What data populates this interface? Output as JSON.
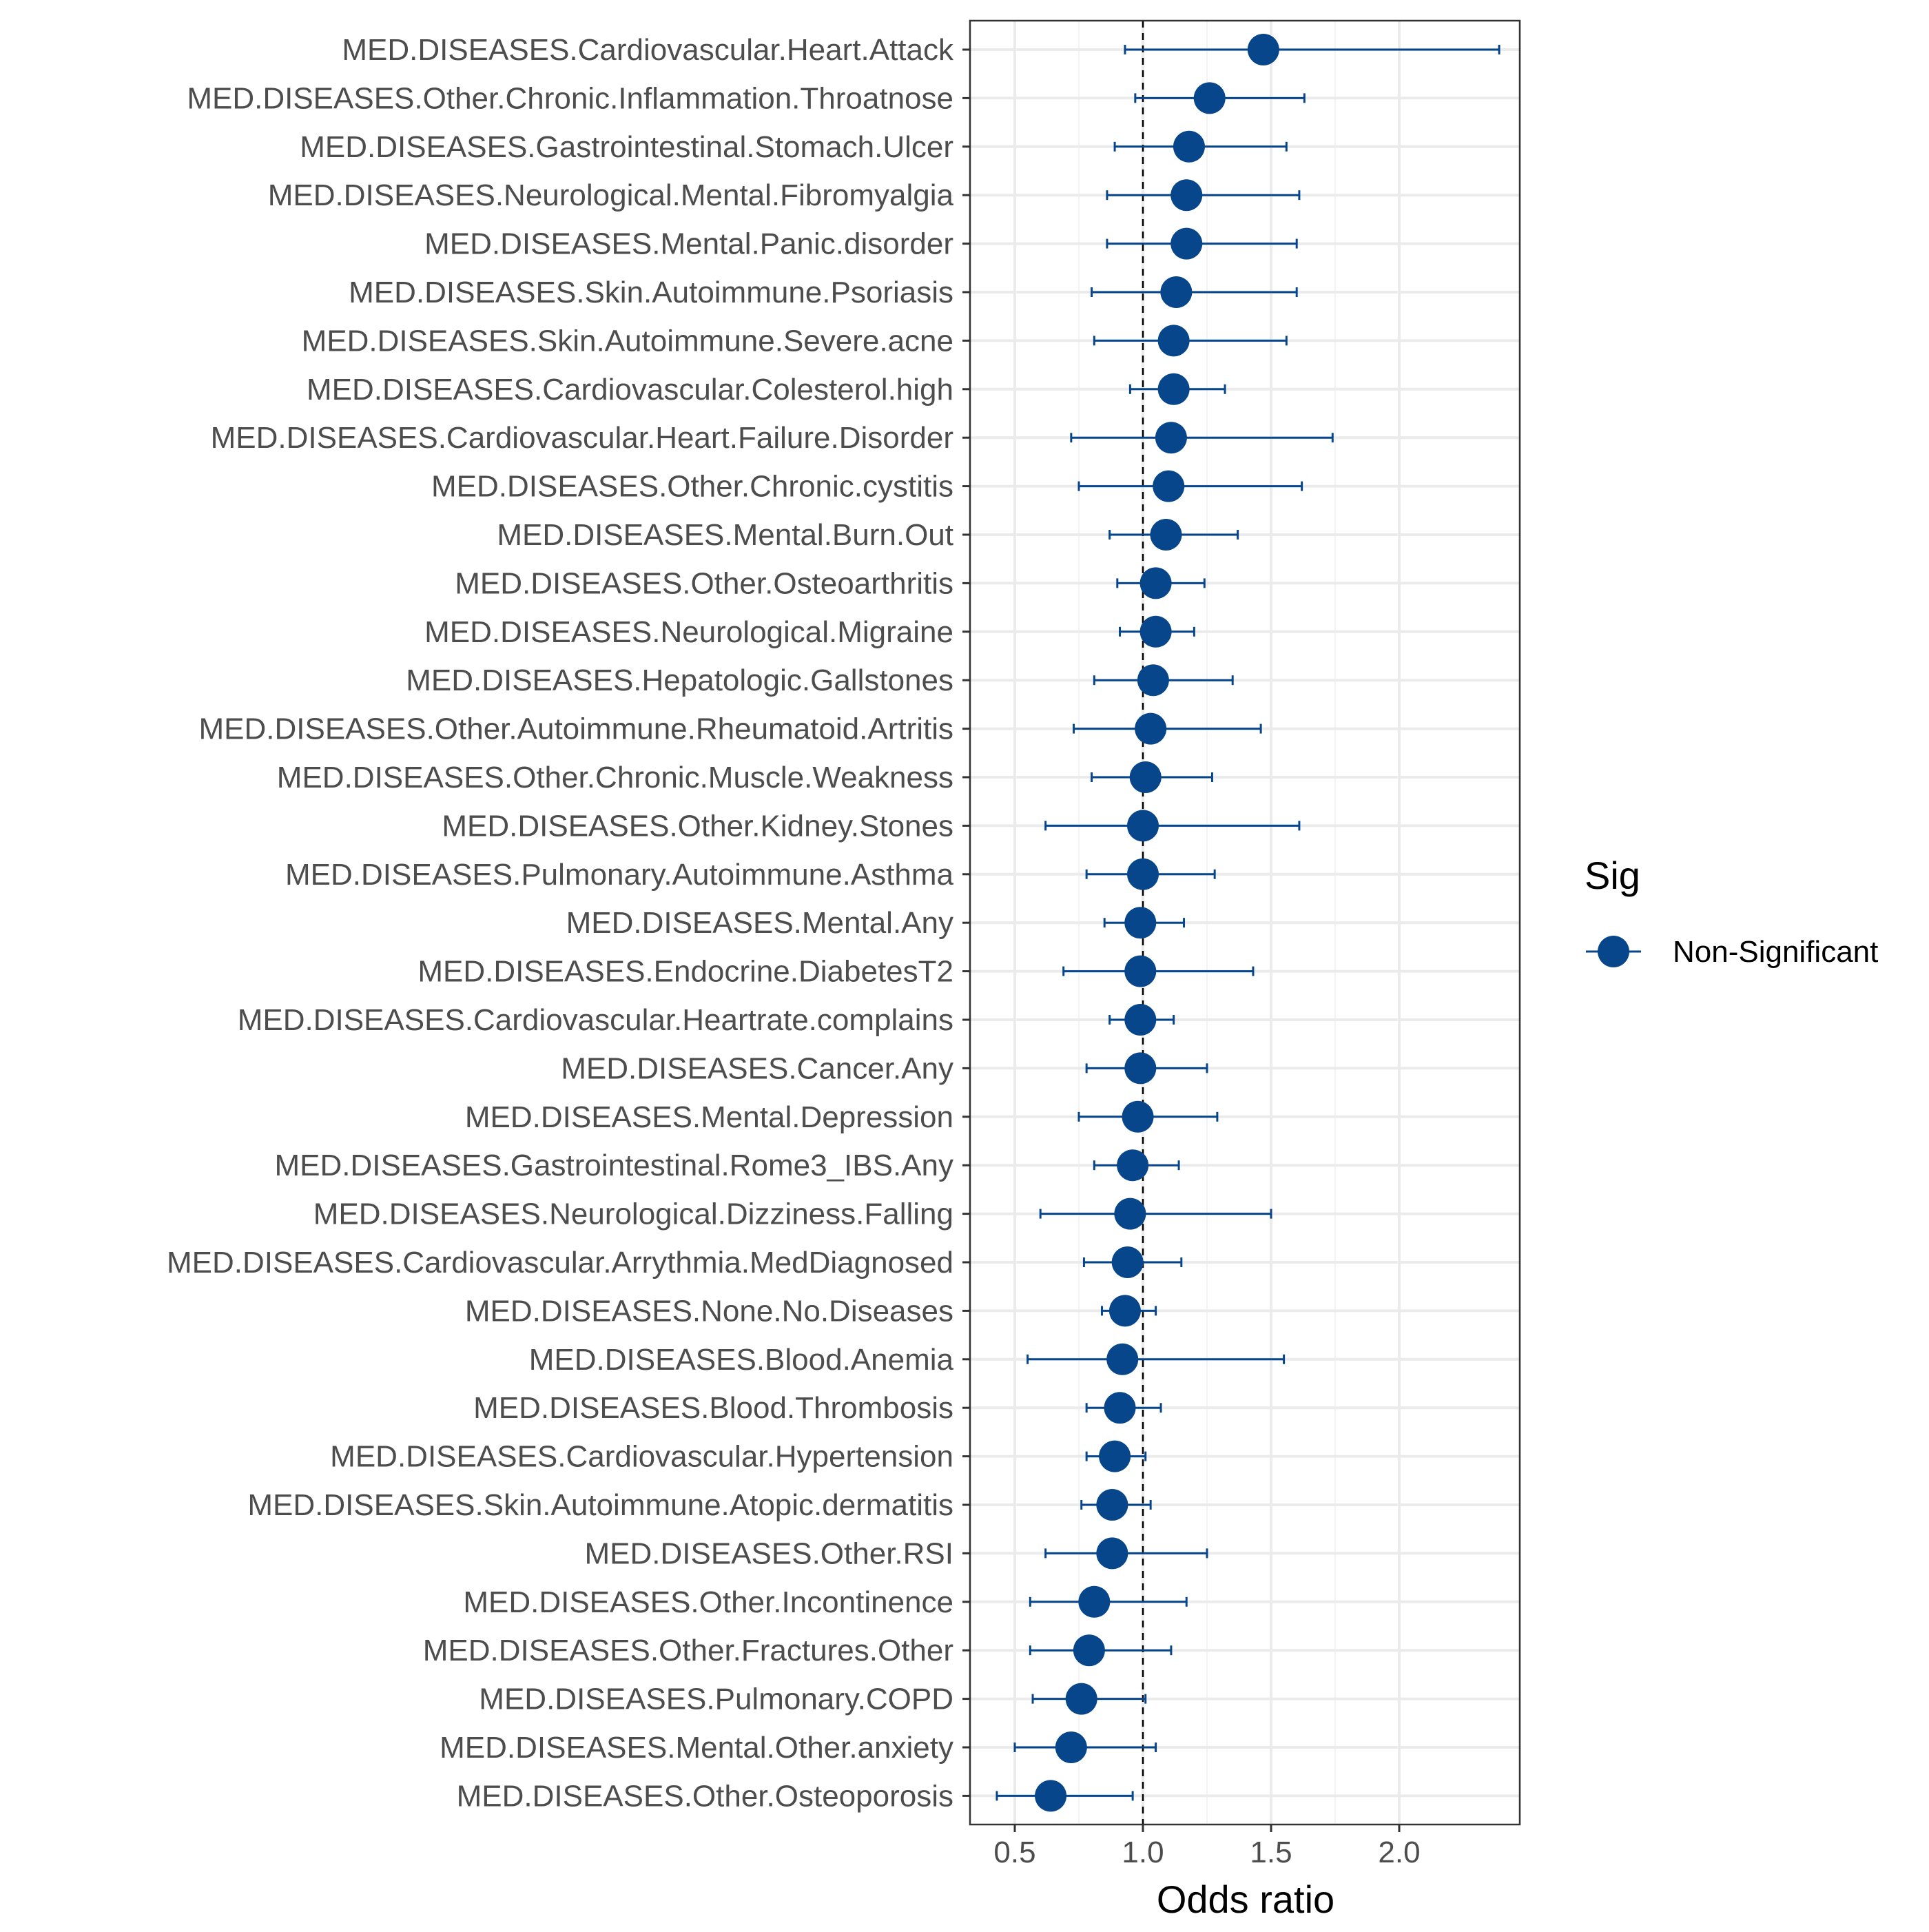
{
  "chart_data": {
    "type": "forest",
    "xlabel": "Odds ratio",
    "ylabel": "",
    "xlim": [
      0.33,
      2.48
    ],
    "xticks": [
      0.5,
      1.0,
      1.5,
      2.0
    ],
    "xtick_labels": [
      "0.5",
      "1.0",
      "1.5",
      "2.0"
    ],
    "reference_line": 1.0,
    "grid": true,
    "legend": {
      "title": "Sig",
      "position": "right",
      "entries": [
        {
          "label": "Non-Significant",
          "color": "#08468b"
        }
      ]
    },
    "series": [
      {
        "name": "Non-Significant",
        "color": "#08468b",
        "points": [
          {
            "label": "MED.DISEASES.Cardiovascular.Heart.Attack",
            "or": 1.47,
            "lo": 0.93,
            "hi": 2.39
          },
          {
            "label": "MED.DISEASES.Other.Chronic.Inflammation.Throatnose",
            "or": 1.26,
            "lo": 0.97,
            "hi": 1.63
          },
          {
            "label": "MED.DISEASES.Gastrointestinal.Stomach.Ulcer",
            "or": 1.18,
            "lo": 0.89,
            "hi": 1.56
          },
          {
            "label": "MED.DISEASES.Neurological.Mental.Fibromyalgia",
            "or": 1.17,
            "lo": 0.86,
            "hi": 1.61
          },
          {
            "label": "MED.DISEASES.Mental.Panic.disorder",
            "or": 1.17,
            "lo": 0.86,
            "hi": 1.6
          },
          {
            "label": "MED.DISEASES.Skin.Autoimmune.Psoriasis",
            "or": 1.13,
            "lo": 0.8,
            "hi": 1.6
          },
          {
            "label": "MED.DISEASES.Skin.Autoimmune.Severe.acne",
            "or": 1.12,
            "lo": 0.81,
            "hi": 1.56
          },
          {
            "label": "MED.DISEASES.Cardiovascular.Colesterol.high",
            "or": 1.12,
            "lo": 0.95,
            "hi": 1.32
          },
          {
            "label": "MED.DISEASES.Cardiovascular.Heart.Failure.Disorder",
            "or": 1.11,
            "lo": 0.72,
            "hi": 1.74
          },
          {
            "label": "MED.DISEASES.Other.Chronic.cystitis",
            "or": 1.1,
            "lo": 0.75,
            "hi": 1.62
          },
          {
            "label": "MED.DISEASES.Mental.Burn.Out",
            "or": 1.09,
            "lo": 0.87,
            "hi": 1.37
          },
          {
            "label": "MED.DISEASES.Other.Osteoarthritis",
            "or": 1.05,
            "lo": 0.9,
            "hi": 1.24
          },
          {
            "label": "MED.DISEASES.Neurological.Migraine",
            "or": 1.05,
            "lo": 0.91,
            "hi": 1.2
          },
          {
            "label": "MED.DISEASES.Hepatologic.Gallstones",
            "or": 1.04,
            "lo": 0.81,
            "hi": 1.35
          },
          {
            "label": "MED.DISEASES.Other.Autoimmune.Rheumatoid.Artritis",
            "or": 1.03,
            "lo": 0.73,
            "hi": 1.46
          },
          {
            "label": "MED.DISEASES.Other.Chronic.Muscle.Weakness",
            "or": 1.01,
            "lo": 0.8,
            "hi": 1.27
          },
          {
            "label": "MED.DISEASES.Other.Kidney.Stones",
            "or": 1.0,
            "lo": 0.62,
            "hi": 1.61
          },
          {
            "label": "MED.DISEASES.Pulmonary.Autoimmune.Asthma",
            "or": 1.0,
            "lo": 0.78,
            "hi": 1.28
          },
          {
            "label": "MED.DISEASES.Mental.Any",
            "or": 0.99,
            "lo": 0.85,
            "hi": 1.16
          },
          {
            "label": "MED.DISEASES.Endocrine.DiabetesT2",
            "or": 0.99,
            "lo": 0.69,
            "hi": 1.43
          },
          {
            "label": "MED.DISEASES.Cardiovascular.Heartrate.complains",
            "or": 0.99,
            "lo": 0.87,
            "hi": 1.12
          },
          {
            "label": "MED.DISEASES.Cancer.Any",
            "or": 0.99,
            "lo": 0.78,
            "hi": 1.25
          },
          {
            "label": "MED.DISEASES.Mental.Depression",
            "or": 0.98,
            "lo": 0.75,
            "hi": 1.29
          },
          {
            "label": "MED.DISEASES.Gastrointestinal.Rome3_IBS.Any",
            "or": 0.96,
            "lo": 0.81,
            "hi": 1.14
          },
          {
            "label": "MED.DISEASES.Neurological.Dizziness.Falling",
            "or": 0.95,
            "lo": 0.6,
            "hi": 1.5
          },
          {
            "label": "MED.DISEASES.Cardiovascular.Arrythmia.MedDiagnosed",
            "or": 0.94,
            "lo": 0.77,
            "hi": 1.15
          },
          {
            "label": "MED.DISEASES.None.No.Diseases",
            "or": 0.93,
            "lo": 0.84,
            "hi": 1.05
          },
          {
            "label": "MED.DISEASES.Blood.Anemia",
            "or": 0.92,
            "lo": 0.55,
            "hi": 1.55
          },
          {
            "label": "MED.DISEASES.Blood.Thrombosis",
            "or": 0.91,
            "lo": 0.78,
            "hi": 1.07
          },
          {
            "label": "MED.DISEASES.Cardiovascular.Hypertension",
            "or": 0.89,
            "lo": 0.78,
            "hi": 1.01
          },
          {
            "label": "MED.DISEASES.Skin.Autoimmune.Atopic.dermatitis",
            "or": 0.88,
            "lo": 0.76,
            "hi": 1.03
          },
          {
            "label": "MED.DISEASES.Other.RSI",
            "or": 0.88,
            "lo": 0.62,
            "hi": 1.25
          },
          {
            "label": "MED.DISEASES.Other.Incontinence",
            "or": 0.81,
            "lo": 0.56,
            "hi": 1.17
          },
          {
            "label": "MED.DISEASES.Other.Fractures.Other",
            "or": 0.79,
            "lo": 0.56,
            "hi": 1.11
          },
          {
            "label": "MED.DISEASES.Pulmonary.COPD",
            "or": 0.76,
            "lo": 0.57,
            "hi": 1.01
          },
          {
            "label": "MED.DISEASES.Mental.Other.anxiety",
            "or": 0.72,
            "lo": 0.5,
            "hi": 1.05
          },
          {
            "label": "MED.DISEASES.Other.Osteoporosis",
            "or": 0.64,
            "lo": 0.43,
            "hi": 0.96
          }
        ]
      }
    ]
  }
}
